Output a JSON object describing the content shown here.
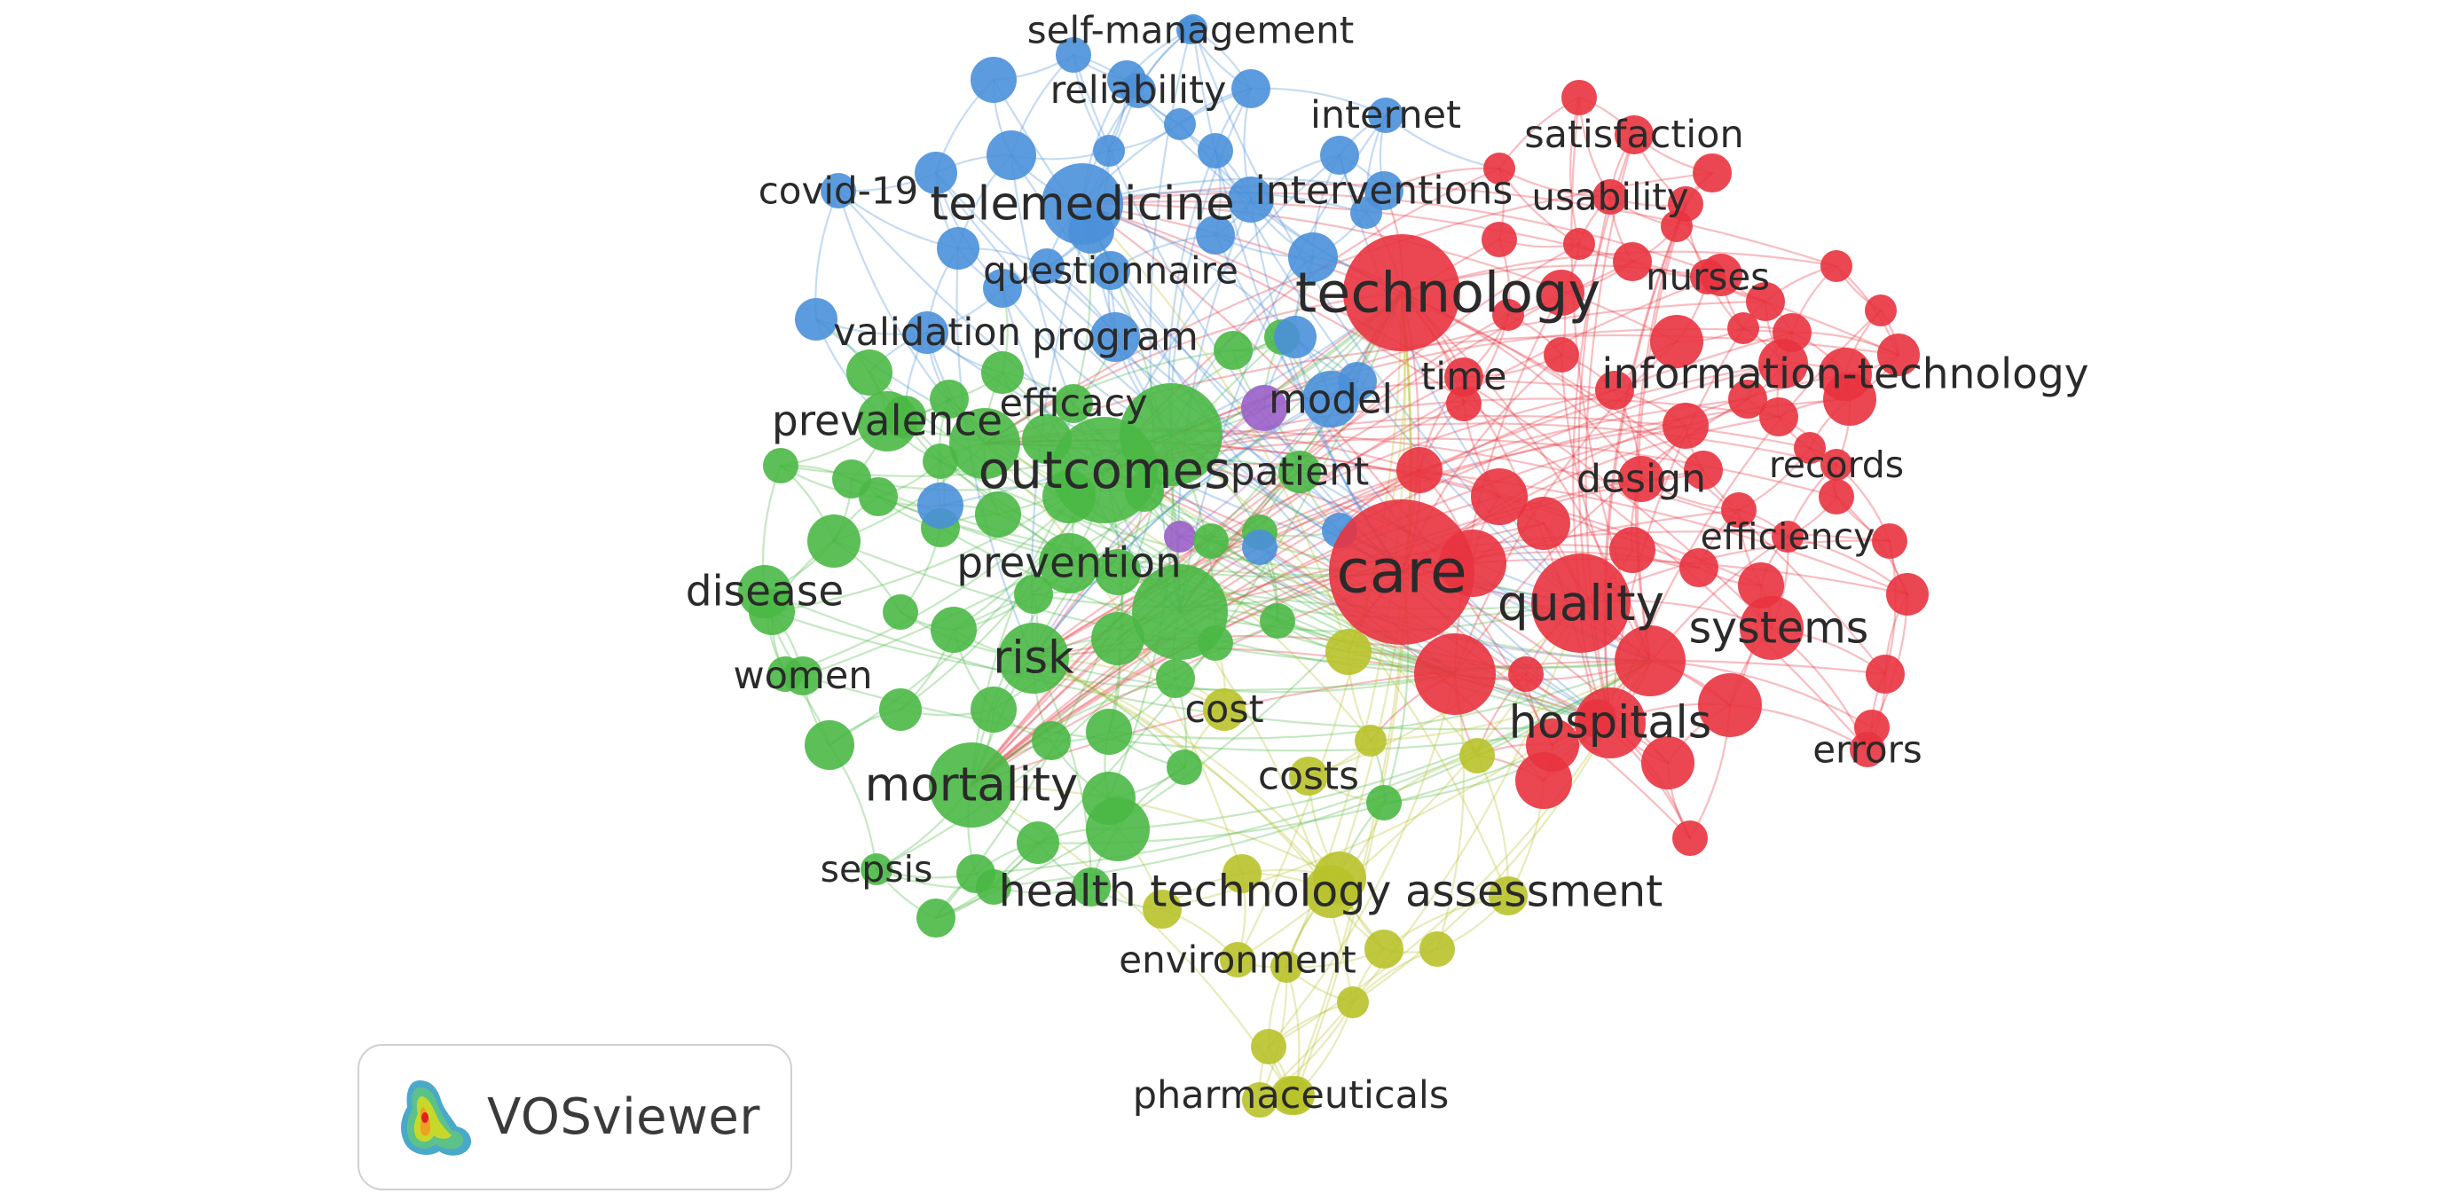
{
  "app": {
    "logo_text": "VOSviewer",
    "logo_icon": "vosviewer-heatmap-logo-icon"
  },
  "clusters": {
    "red": "#e8333f",
    "green": "#4ab845",
    "blue": "#4a90d9",
    "yellow": "#b8c22a",
    "purple": "#9a5fc8"
  },
  "keywords": [
    {
      "id": "care",
      "label": "care",
      "cluster": "red",
      "weight": 10
    },
    {
      "id": "technology",
      "label": "technology",
      "cluster": "red",
      "weight": 8.5
    },
    {
      "id": "quality",
      "label": "quality",
      "cluster": "red",
      "weight": 7
    },
    {
      "id": "hospitals",
      "label": "hospitals",
      "cluster": "red",
      "weight": 6
    },
    {
      "id": "systems",
      "label": "systems",
      "cluster": "red",
      "weight": 5.5
    },
    {
      "id": "information-technology",
      "label": "information-technology",
      "cluster": "red",
      "weight": 5
    },
    {
      "id": "design",
      "label": "design",
      "cluster": "red",
      "weight": 4.2
    },
    {
      "id": "time",
      "label": "time",
      "cluster": "red",
      "weight": 4
    },
    {
      "id": "satisfaction",
      "label": "satisfaction",
      "cluster": "red",
      "weight": 4
    },
    {
      "id": "usability",
      "label": "usability",
      "cluster": "red",
      "weight": 3.8
    },
    {
      "id": "nurses",
      "label": "nurses",
      "cluster": "red",
      "weight": 3.8
    },
    {
      "id": "records",
      "label": "records",
      "cluster": "red",
      "weight": 3.5
    },
    {
      "id": "efficiency",
      "label": "efficiency",
      "cluster": "red",
      "weight": 3.5
    },
    {
      "id": "errors",
      "label": "errors",
      "cluster": "red",
      "weight": 3.8
    },
    {
      "id": "outcomes",
      "label": "outcomes",
      "cluster": "green",
      "weight": 7.5
    },
    {
      "id": "mortality",
      "label": "mortality",
      "cluster": "green",
      "weight": 6.5
    },
    {
      "id": "risk",
      "label": "risk",
      "cluster": "green",
      "weight": 6
    },
    {
      "id": "prevention",
      "label": "prevention",
      "cluster": "green",
      "weight": 5
    },
    {
      "id": "prevalence",
      "label": "prevalence",
      "cluster": "green",
      "weight": 5
    },
    {
      "id": "disease",
      "label": "disease",
      "cluster": "green",
      "weight": 5
    },
    {
      "id": "women",
      "label": "women",
      "cluster": "green",
      "weight": 4
    },
    {
      "id": "sepsis",
      "label": "sepsis",
      "cluster": "green",
      "weight": 3.5
    },
    {
      "id": "efficacy",
      "label": "efficacy",
      "cluster": "green",
      "weight": 4
    },
    {
      "id": "patient",
      "label": "patient",
      "cluster": "green",
      "weight": 4.2
    },
    {
      "id": "telemedicine",
      "label": "telemedicine",
      "cluster": "blue",
      "weight": 6.5
    },
    {
      "id": "internet",
      "label": "internet",
      "cluster": "blue",
      "weight": 4
    },
    {
      "id": "interventions",
      "label": "interventions",
      "cluster": "blue",
      "weight": 4.2
    },
    {
      "id": "self-management",
      "label": "self-management",
      "cluster": "blue",
      "weight": 3.8
    },
    {
      "id": "reliability",
      "label": "reliability",
      "cluster": "blue",
      "weight": 4
    },
    {
      "id": "covid-19",
      "label": "covid-19",
      "cluster": "blue",
      "weight": 3.8
    },
    {
      "id": "questionnaire",
      "label": "questionnaire",
      "cluster": "blue",
      "weight": 3.8
    },
    {
      "id": "validation",
      "label": "validation",
      "cluster": "blue",
      "weight": 4
    },
    {
      "id": "program",
      "label": "program",
      "cluster": "blue",
      "weight": 4.2
    },
    {
      "id": "model",
      "label": "model",
      "cluster": "blue",
      "weight": 4.6
    },
    {
      "id": "health-technology-assessment",
      "label": "health technology assessment",
      "cluster": "yellow",
      "weight": 5.5
    },
    {
      "id": "cost",
      "label": "cost",
      "cluster": "yellow",
      "weight": 4
    },
    {
      "id": "costs",
      "label": "costs",
      "cluster": "yellow",
      "weight": 4.2
    },
    {
      "id": "environment",
      "label": "environment",
      "cluster": "yellow",
      "weight": 3.8
    },
    {
      "id": "pharmaceuticals",
      "label": "pharmaceuticals",
      "cluster": "yellow",
      "weight": 4
    }
  ]
}
